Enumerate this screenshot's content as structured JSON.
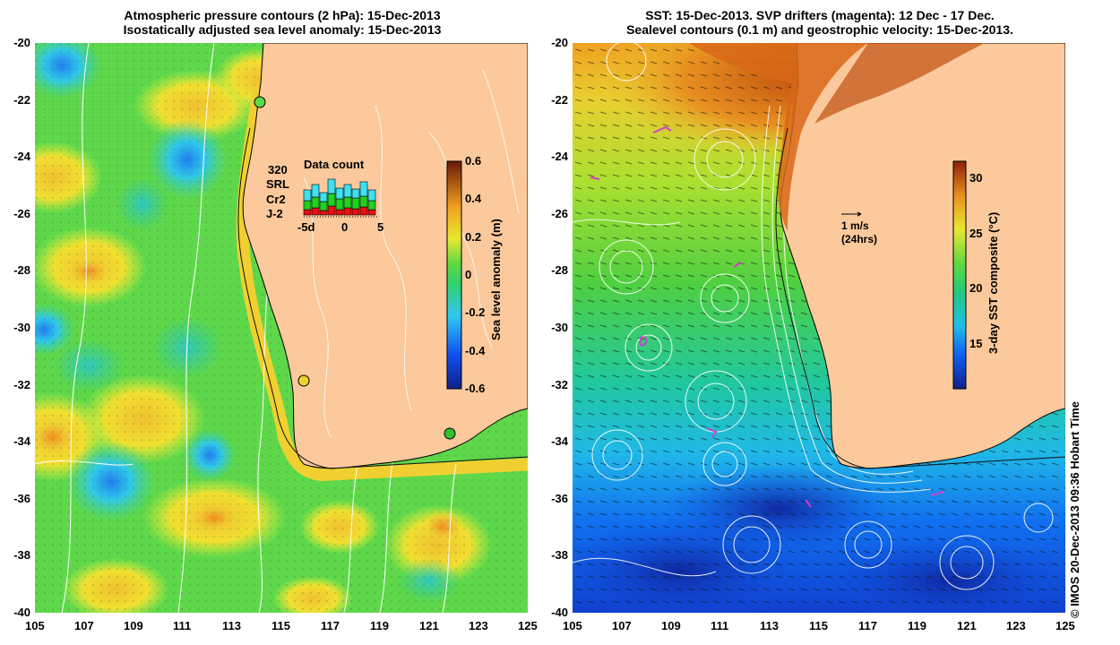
{
  "left_panel": {
    "title_line1": "Atmospheric pressure contours (2 hPa): 15-Dec-2013",
    "title_line2": "Isostatically adjusted sea level anomaly: 15-Dec-2013",
    "colorbar": {
      "title": "Sea level anomaly (m)",
      "ticks": [
        "0.6",
        "0.4",
        "0.2",
        "0",
        "-0.2",
        "-0.4",
        "-0.6"
      ],
      "range": [
        -0.6,
        0.6
      ]
    },
    "data_count": {
      "title": "Data count",
      "max_label": "320",
      "series": [
        {
          "name": "SRL",
          "color": "#40e0f0"
        },
        {
          "name": "Cr2",
          "color": "#22d022"
        },
        {
          "name": "J-2",
          "color": "#e81010"
        }
      ],
      "axis_labels": [
        "-5d",
        "0",
        "5"
      ]
    }
  },
  "right_panel": {
    "title_line1": "SST: 15-Dec-2013. SVP drifters (magenta): 12 Dec - 17 Dec.",
    "title_line2": "Sealevel contours (0.1 m) and geostrophic velocity: 15-Dec-2013.",
    "colorbar": {
      "title": "3-day SST composite (°C)",
      "ticks": [
        "30",
        "25",
        "20",
        "15"
      ],
      "range": [
        11,
        31.5
      ]
    },
    "vector_key": {
      "line1": "1 m/s",
      "line2": "(24hrs)"
    }
  },
  "axes": {
    "x_ticks": [
      "105",
      "107",
      "109",
      "111",
      "113",
      "115",
      "117",
      "119",
      "121",
      "123",
      "125"
    ],
    "y_ticks": [
      "-20",
      "-22",
      "-24",
      "-26",
      "-28",
      "-30",
      "-32",
      "-34",
      "-36",
      "-38",
      "-40"
    ],
    "x_range": [
      105,
      125
    ],
    "y_range": [
      -40,
      -20
    ]
  },
  "credit": "© IMOS 20-Dec-2013 09:36 Hobart Time",
  "colors": {
    "land": "#fbc99c",
    "coastline": "#000000",
    "contour": "#ffffff",
    "drifter": "#d040d0"
  }
}
